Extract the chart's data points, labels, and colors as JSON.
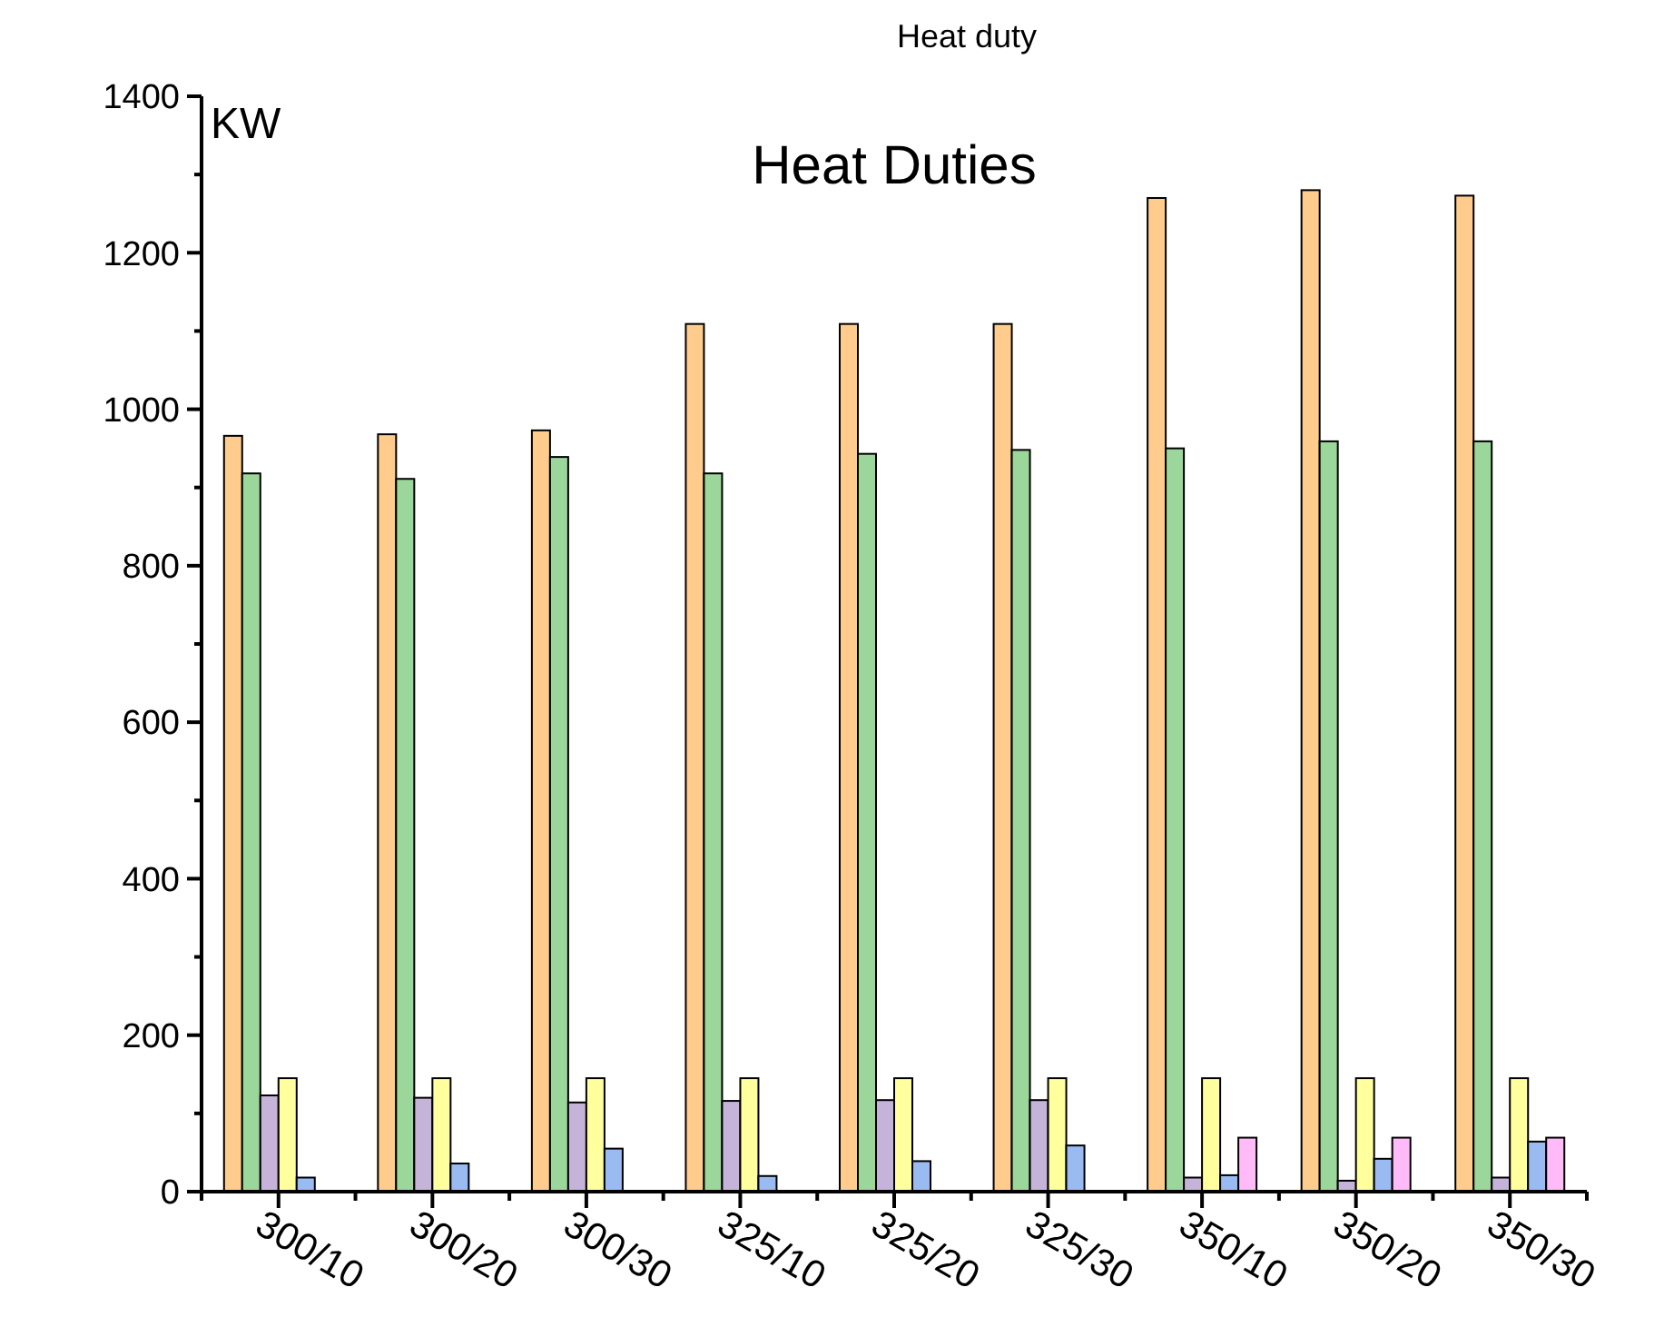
{
  "chart_data": {
    "type": "bar",
    "title": "Heat Duties",
    "ylabel": "KW",
    "annotations": [
      "Heat duty"
    ],
    "categories": [
      "300/10",
      "300/20",
      "300/30",
      "325/10",
      "325/20",
      "325/30",
      "350/10",
      "350/20",
      "350/30"
    ],
    "series": [
      {
        "color": "#ffcc8e",
        "values": [
          966,
          968,
          973,
          1109,
          1109,
          1109,
          1270,
          1280,
          1273
        ]
      },
      {
        "color": "#9bd69b",
        "values": [
          918,
          911,
          939,
          918,
          943,
          948,
          950,
          959,
          959
        ]
      },
      {
        "color": "#c6b3d9",
        "values": [
          123,
          120,
          114,
          116,
          117,
          117,
          18,
          14,
          18
        ]
      },
      {
        "color": "#ffff9e",
        "values": [
          145,
          145,
          145,
          145,
          145,
          145,
          145,
          145,
          145
        ]
      },
      {
        "color": "#99bbf2",
        "values": [
          18,
          36,
          55,
          20,
          39,
          59,
          21,
          42,
          64
        ]
      },
      {
        "color": "#ffbbf7",
        "values": [
          null,
          null,
          null,
          null,
          null,
          null,
          69,
          69,
          69
        ]
      }
    ],
    "ylim": [
      0,
      1400
    ],
    "yticks": [
      0,
      {
        "value": 100,
        "label": null
      },
      200,
      {
        "value": 300,
        "label": null
      },
      400,
      {
        "value": 500,
        "label": null
      },
      600,
      {
        "value": 700,
        "label": null
      },
      800,
      {
        "value": 900,
        "label": null
      },
      1000,
      {
        "value": 1100,
        "label": null
      },
      1200,
      {
        "value": 1300,
        "label": null
      },
      1400
    ],
    "grid": false
  }
}
